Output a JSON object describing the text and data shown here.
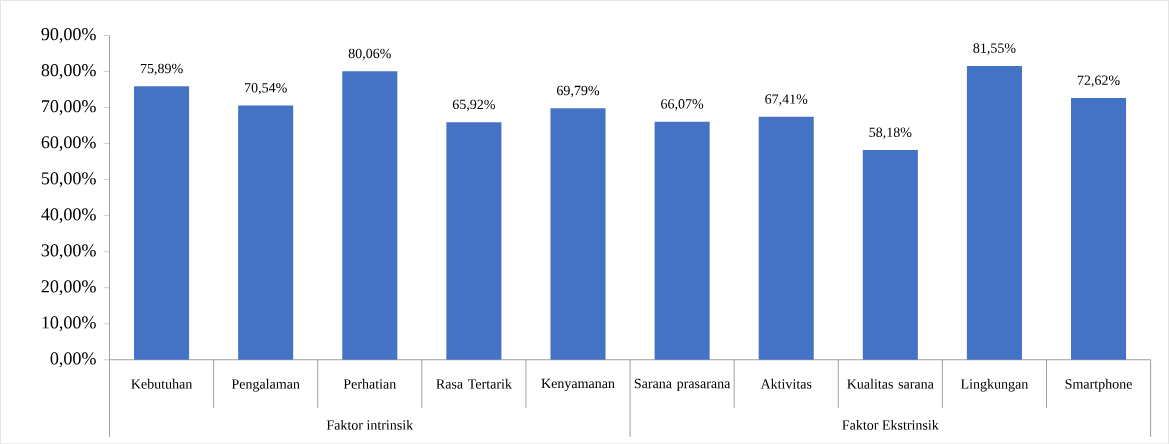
{
  "chart_data": {
    "type": "bar",
    "categories": [
      "Kebutuhan",
      "Pengalaman",
      "Perhatian",
      "Rasa Tertarik",
      "Kenyamanan",
      "Sarana prasarana",
      "Aktivitas",
      "Kualitas sarana",
      "Lingkungan",
      "Smartphone"
    ],
    "values": [
      75.89,
      70.54,
      80.06,
      65.92,
      69.79,
      66.07,
      67.41,
      58.18,
      81.55,
      72.62
    ],
    "value_labels": [
      "75,89%",
      "70,54%",
      "80,06%",
      "65,92%",
      "69,79%",
      "66,07%",
      "67,41%",
      "58,18%",
      "81,55%",
      "72,62%"
    ],
    "color": "#4472c4",
    "ylim": [
      0,
      90
    ],
    "yticks": [
      {
        "value": 0,
        "label": "0,00%"
      },
      {
        "value": 10,
        "label": "10,00%"
      },
      {
        "value": 20,
        "label": "20,00%"
      },
      {
        "value": 30,
        "label": "30,00%"
      },
      {
        "value": 40,
        "label": "40,00%"
      },
      {
        "value": 50,
        "label": "50,00%"
      },
      {
        "value": 60,
        "label": "60,00%"
      },
      {
        "value": 70,
        "label": "70,00%"
      },
      {
        "value": 80,
        "label": "80,00%"
      },
      {
        "value": 90,
        "label": "90,00%"
      }
    ],
    "annotations": [
      "Faktor intrinsik",
      "Faktor Ekstrinsik"
    ]
  }
}
